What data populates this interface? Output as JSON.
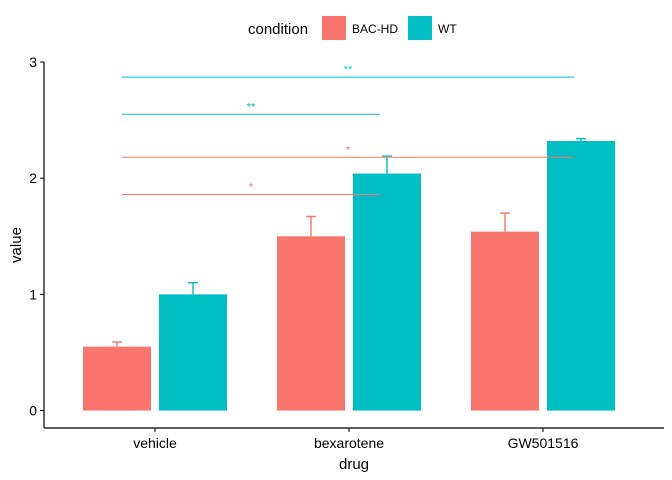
{
  "chart_data": {
    "type": "bar",
    "title": "",
    "xlabel": "drug",
    "ylabel": "value",
    "ylim": [
      -0.15,
      3.0
    ],
    "yticks": [
      0,
      1,
      2,
      3
    ],
    "categories": [
      "vehicle",
      "bexarotene",
      "GW501516"
    ],
    "series": [
      {
        "name": "BAC-HD",
        "color": "#F8766D",
        "values": [
          0.55,
          1.5,
          1.54
        ],
        "errors": [
          0.04,
          0.17,
          0.16
        ]
      },
      {
        "name": "WT",
        "color": "#00BFC4",
        "values": [
          1.0,
          2.04,
          2.32
        ],
        "errors": [
          0.1,
          0.15,
          0.02
        ]
      }
    ],
    "legend": {
      "title": "condition",
      "placement": "top"
    },
    "significance": [
      {
        "label": "*",
        "series": "BAC-HD",
        "from": "vehicle",
        "to": "bexarotene",
        "y": 1.86,
        "color": "#F8766D"
      },
      {
        "label": "*",
        "series": "BAC-HD",
        "from": "vehicle",
        "to": "GW501516",
        "y": 2.18,
        "color": "#F8766D"
      },
      {
        "label": "**",
        "series": "WT",
        "from": "vehicle",
        "to": "bexarotene",
        "y": 2.55,
        "color": "#00BFC4"
      },
      {
        "label": "**",
        "series": "WT",
        "from": "vehicle",
        "to": "GW501516",
        "y": 2.87,
        "color": "#00BFC4"
      }
    ]
  }
}
